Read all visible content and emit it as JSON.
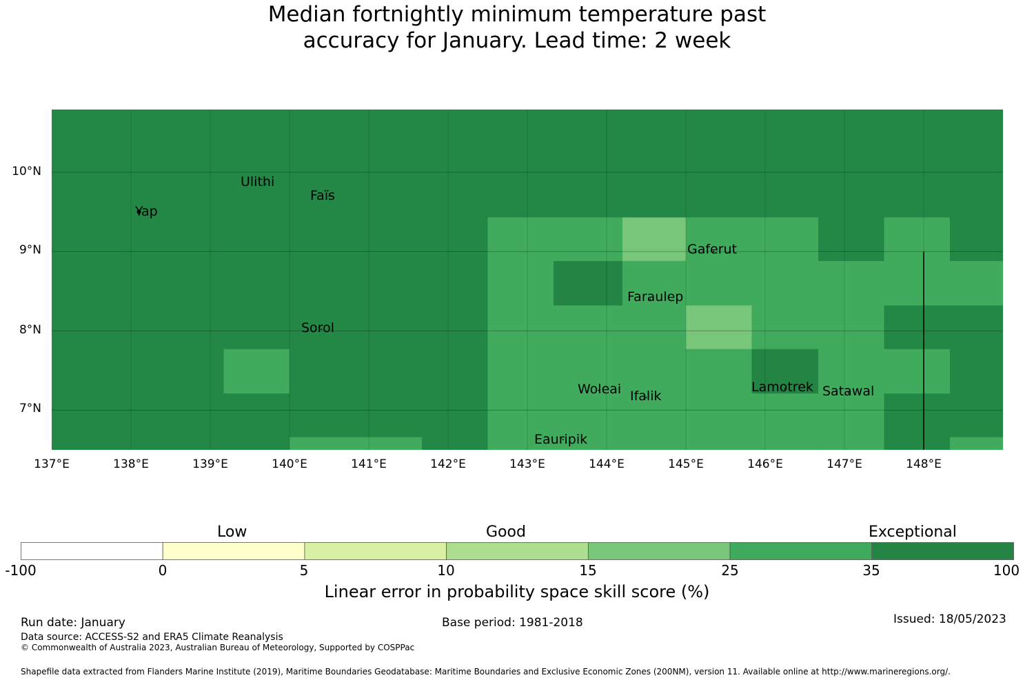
{
  "title_lines": [
    "Median fortnightly minimum temperature past",
    "accuracy for January. Lead time: 2 week"
  ],
  "map": {
    "lat_labels": [
      "10°N",
      "9°N",
      "8°N",
      "7°N"
    ],
    "lon_labels": [
      "137°E",
      "138°E",
      "139°E",
      "140°E",
      "141°E",
      "142°E",
      "143°E",
      "144°E",
      "145°E",
      "146°E",
      "147°E",
      "148°E"
    ],
    "background_color": "#238745",
    "cells": [
      {
        "lon_min": 142.5,
        "lon_max": 144.2,
        "lat_min": 6.5,
        "lat_max": 9.43,
        "class": "25-35"
      },
      {
        "lon_min": 144.2,
        "lon_max": 145.0,
        "lat_min": 8.88,
        "lat_max": 9.43,
        "class": "15-25"
      },
      {
        "lon_min": 145.0,
        "lon_max": 146.67,
        "lat_min": 6.5,
        "lat_max": 9.43,
        "class": "25-35"
      },
      {
        "lon_min": 144.2,
        "lon_max": 145.0,
        "lat_min": 6.5,
        "lat_max": 8.88,
        "class": "25-35"
      },
      {
        "lon_min": 143.33,
        "lon_max": 144.2,
        "lat_min": 8.32,
        "lat_max": 8.88,
        "class": "35-100"
      },
      {
        "lon_min": 145.0,
        "lon_max": 145.83,
        "lat_min": 7.77,
        "lat_max": 8.32,
        "class": "15-25"
      },
      {
        "lon_min": 145.83,
        "lon_max": 146.67,
        "lat_min": 7.21,
        "lat_max": 7.77,
        "class": "35-100"
      },
      {
        "lon_min": 146.67,
        "lon_max": 147.5,
        "lat_min": 6.5,
        "lat_max": 8.88,
        "class": "25-35"
      },
      {
        "lon_min": 147.5,
        "lon_max": 148.33,
        "lat_min": 8.88,
        "lat_max": 9.43,
        "class": "25-35"
      },
      {
        "lon_min": 147.5,
        "lon_max": 149.0,
        "lat_min": 8.32,
        "lat_max": 8.88,
        "class": "25-35"
      },
      {
        "lon_min": 147.5,
        "lon_max": 148.33,
        "lat_min": 7.21,
        "lat_max": 7.77,
        "class": "25-35"
      },
      {
        "lon_min": 139.17,
        "lon_max": 140.0,
        "lat_min": 7.21,
        "lat_max": 7.77,
        "class": "25-35"
      },
      {
        "lon_min": 140.0,
        "lon_max": 141.67,
        "lat_min": 6.5,
        "lat_max": 6.66,
        "class": "25-35"
      },
      {
        "lon_min": 148.33,
        "lon_max": 149.0,
        "lat_min": 6.5,
        "lat_max": 6.66,
        "class": "25-35"
      }
    ],
    "places": [
      {
        "name": "Yap",
        "lon": 138.1,
        "lat": 9.5
      },
      {
        "name": "Ulithi",
        "lon": 139.7,
        "lat": 9.85
      },
      {
        "name": "Faïs",
        "lon": 140.5,
        "lat": 9.7
      },
      {
        "name": "Gaferut",
        "lon": 145.35,
        "lat": 9.0
      },
      {
        "name": "Faraulep",
        "lon": 144.55,
        "lat": 8.4
      },
      {
        "name": "Sorol",
        "lon": 140.4,
        "lat": 8.02
      },
      {
        "name": "Woleai",
        "lon": 143.9,
        "lat": 7.25
      },
      {
        "name": "Ifalik",
        "lon": 144.5,
        "lat": 7.16
      },
      {
        "name": "Lamotrek",
        "lon": 146.25,
        "lat": 7.27
      },
      {
        "name": "Satawal",
        "lon": 147.05,
        "lat": 7.22
      },
      {
        "name": "Eauripik",
        "lon": 143.45,
        "lat": 6.63
      }
    ],
    "boundary_line": {
      "lon": 148.0,
      "lat_min": 6.5,
      "lat_max": 9.0
    }
  },
  "colorbar": {
    "category_labels": [
      "Low",
      "Good",
      "Exceptional"
    ],
    "bins": [
      {
        "from": -100,
        "to": 0,
        "color": "#ffffff"
      },
      {
        "from": 0,
        "to": 5,
        "color": "#ffffcc"
      },
      {
        "from": 5,
        "to": 10,
        "color": "#d9f0a3"
      },
      {
        "from": 10,
        "to": 15,
        "color": "#addd8e"
      },
      {
        "from": 15,
        "to": 25,
        "color": "#78c679"
      },
      {
        "from": 25,
        "to": 35,
        "color": "#41ab5d"
      },
      {
        "from": 35,
        "to": 100,
        "color": "#238443"
      }
    ],
    "tick_labels": [
      "-100",
      "0",
      "5",
      "10",
      "15",
      "25",
      "35",
      "100"
    ],
    "title": "Linear error in probability space skill score (%)"
  },
  "footer": {
    "run_date": "Run date: January",
    "base_period": "Base period: 1981-2018",
    "issued": "Issued: 18/05/2023",
    "data_source": "Data source: ACCESS-S2 and ERA5 Climate Reanalysis",
    "copyright": "© Commonwealth of Australia 2023, Australian Bureau of Meteorology, Supported by COSPPac",
    "shapefile": "Shapefile data extracted from Flanders Marine Institute (2019), Maritime Boundaries Geodatabase: Maritime Boundaries and Exclusive Economic Zones (200NM), version 11. Available online at http://www.marineregions.org/."
  }
}
